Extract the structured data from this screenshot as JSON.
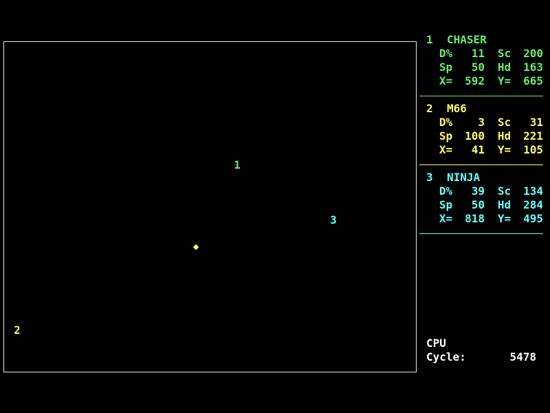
{
  "robots": [
    {
      "num": "1",
      "name": "CHASER",
      "color": "#66ee66",
      "dmg_label": "D%",
      "dmg": "11",
      "sc_label": "Sc",
      "sc": "200",
      "sp_label": "Sp",
      "sp": "50",
      "hd_label": "Hd",
      "hd": "163",
      "x_label": "X=",
      "x": "592",
      "y_label": "Y=",
      "y": "665",
      "marker": "1"
    },
    {
      "num": "2",
      "name": "M66",
      "color": "#ffff66",
      "dmg_label": "D%",
      "dmg": "3",
      "sc_label": "Sc",
      "sc": "31",
      "sp_label": "Sp",
      "sp": "100",
      "hd_label": "Hd",
      "hd": "221",
      "x_label": "X=",
      "x": "41",
      "y_label": "Y=",
      "y": "105",
      "marker": "2"
    },
    {
      "num": "3",
      "name": "NINJA",
      "color": "#66ffff",
      "dmg_label": "D%",
      "dmg": "39",
      "sc_label": "Sc",
      "sc": "134",
      "sp_label": "Sp",
      "sp": "50",
      "hd_label": "Hd",
      "hd": "284",
      "x_label": "X=",
      "x": "818",
      "y_label": "Y=",
      "y": "495",
      "marker": "3"
    }
  ],
  "cpu": {
    "title": "CPU",
    "cycle_label": "Cycle:",
    "cycle": "5478"
  },
  "missile_color": "#ffff55"
}
